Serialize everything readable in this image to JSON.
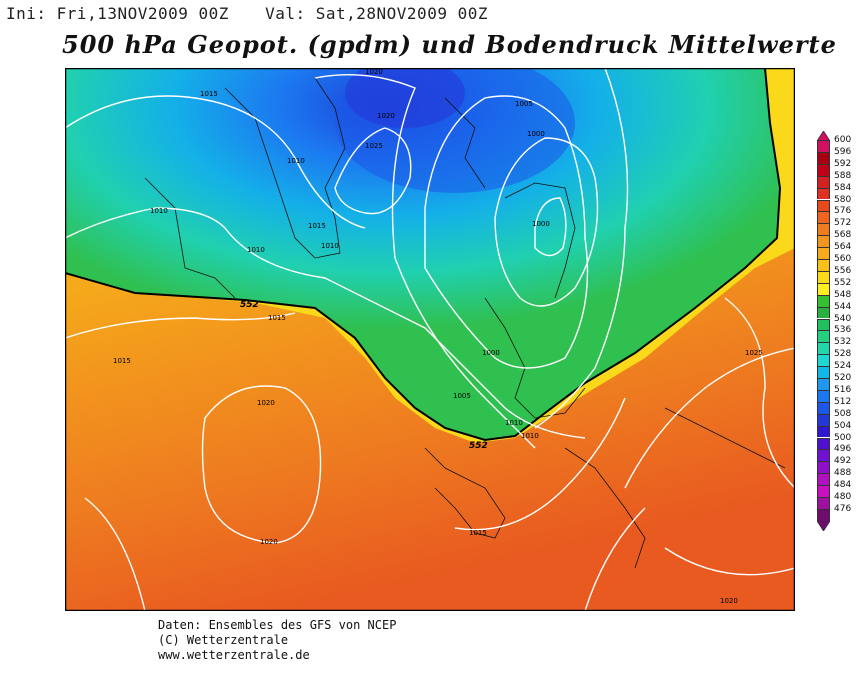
{
  "header": {
    "init_label": "Ini: Fri,13NOV2009 00Z",
    "valid_label": "Val: Sat,28NOV2009 00Z"
  },
  "title": "500 hPa Geopot. (gpdm) und Bodendruck Mittelwerte",
  "map": {
    "contour_552_label": "552",
    "isobar_labels": [
      "1020",
      "1015",
      "1025",
      "1020",
      "1005",
      "1000",
      "1000",
      "1010",
      "1010",
      "1010",
      "1015",
      "1010",
      "1015",
      "1000",
      "1005",
      "1025",
      "1020",
      "1010",
      "1010",
      "1015",
      "1020",
      "1020"
    ]
  },
  "legend": {
    "levels": [
      "600",
      "596",
      "592",
      "588",
      "584",
      "580",
      "576",
      "572",
      "568",
      "564",
      "560",
      "556",
      "552",
      "548",
      "544",
      "540",
      "536",
      "532",
      "528",
      "524",
      "520",
      "516",
      "512",
      "508",
      "504",
      "500",
      "496",
      "492",
      "488",
      "484",
      "480",
      "476"
    ],
    "colors": [
      "#d01060",
      "#a80010",
      "#c00018",
      "#d42020",
      "#e03020",
      "#e84a1c",
      "#ee6420",
      "#f07c20",
      "#f49420",
      "#f6aa1c",
      "#f8c018",
      "#fad81a",
      "#fcee20",
      "#34c030",
      "#28b040",
      "#20c060",
      "#24d080",
      "#20d8a8",
      "#1cd8d0",
      "#10b8e8",
      "#2098f0",
      "#1c78f0",
      "#1c58e8",
      "#2438d8",
      "#3018d0",
      "#5010d0",
      "#7010d0",
      "#9010c8",
      "#b010c0",
      "#c810c0",
      "#a010a0",
      "#700c70"
    ]
  },
  "footer": {
    "line1": "Daten: Ensembles des GFS von NCEP",
    "line2": "(C) Wetterzentrale",
    "line3": "www.wetterzentrale.de"
  }
}
